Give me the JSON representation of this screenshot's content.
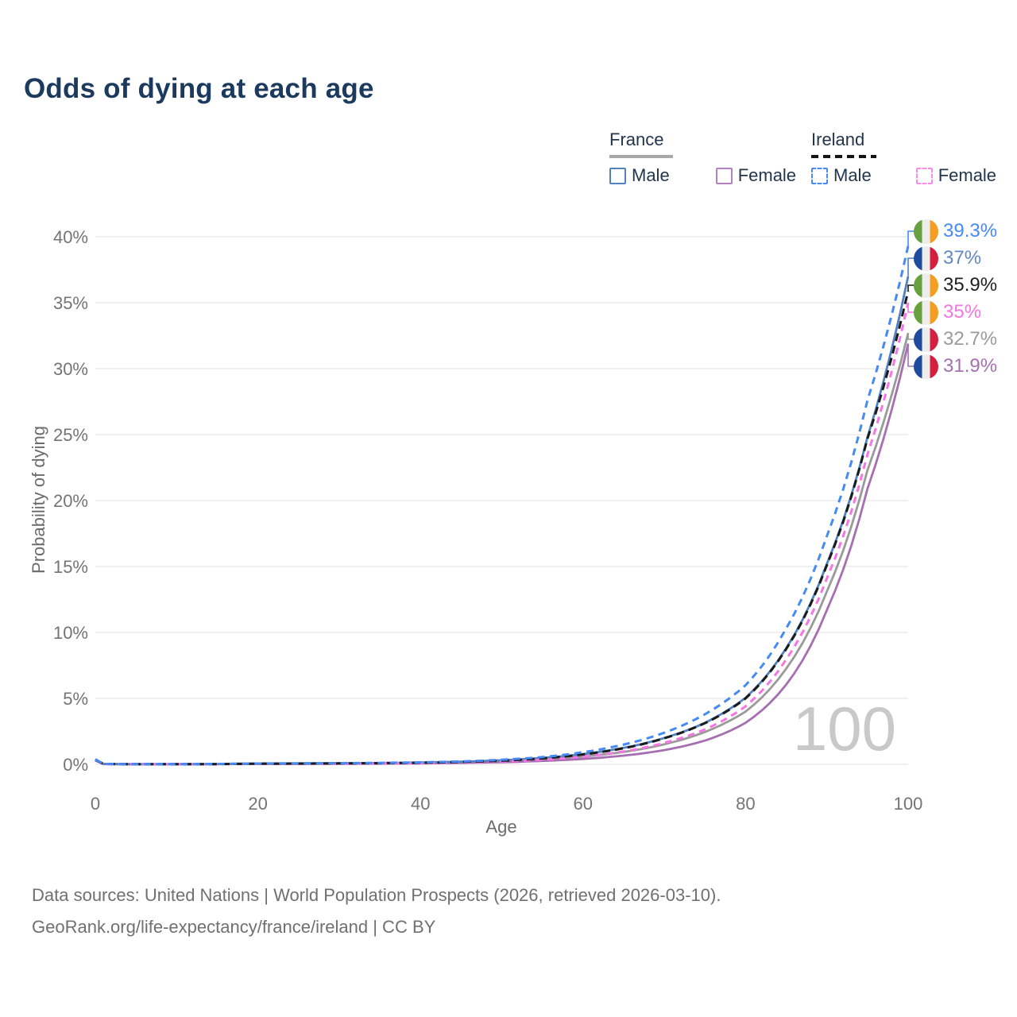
{
  "title": "Odds of dying at each age",
  "legend": {
    "france": {
      "title": "France",
      "male": "Male",
      "female": "Female",
      "male_color": "#5281be",
      "female_color": "#b77fc4",
      "rule_color": "#a8a8a8"
    },
    "ireland": {
      "title": "Ireland",
      "male": "Male",
      "female": "Female",
      "male_color": "#4b8af2",
      "female_color": "#fa8ce9",
      "rule_color": "#141414"
    }
  },
  "colors": {
    "title_text": "#1c3a5e",
    "grid": "#e7e7e7",
    "tick_text": "#747474",
    "axis_title_text": "#6b6b6b",
    "watermark": "#c9c9c9",
    "flags": {
      "ireland": [
        "#68a03f",
        "#ededed",
        "#f59d21"
      ],
      "france": [
        "#1e4b9e",
        "#ededed",
        "#d61f3e"
      ]
    }
  },
  "chart_data": {
    "type": "line",
    "title": "Odds of dying at each age",
    "xlabel": "Age",
    "ylabel": "Probability of dying",
    "xlim": [
      0,
      100
    ],
    "ylim": [
      0,
      40
    ],
    "x_ticks": [
      0,
      20,
      40,
      60,
      80,
      100
    ],
    "y_ticks": [
      0,
      5,
      10,
      15,
      20,
      25,
      30,
      35,
      40
    ],
    "y_tick_labels": [
      "0%",
      "5%",
      "10%",
      "15%",
      "20%",
      "25%",
      "30%",
      "35%",
      "40%"
    ],
    "grid": "horizontal",
    "watermark": "100",
    "ages": [
      0,
      1,
      5,
      10,
      15,
      20,
      25,
      30,
      35,
      40,
      45,
      50,
      55,
      60,
      65,
      70,
      75,
      80,
      85,
      90,
      95,
      100
    ],
    "series": [
      {
        "name": "Ireland Male",
        "flag": "ireland",
        "style": "dashed",
        "color": "#468af4",
        "end_label": "39.3%",
        "label_color": "#468af4",
        "end_value": 39.3,
        "values": [
          0.35,
          0.03,
          0.01,
          0.01,
          0.03,
          0.06,
          0.08,
          0.09,
          0.11,
          0.15,
          0.22,
          0.35,
          0.55,
          0.92,
          1.5,
          2.4,
          3.8,
          6.0,
          10.3,
          17.3,
          27.6,
          39.3
        ]
      },
      {
        "name": "France Male",
        "flag": "france",
        "style": "solid",
        "color": "#5281be",
        "end_label": "37%",
        "label_color": "#6288c4",
        "end_value": 37,
        "values": [
          0.4,
          0.03,
          0.01,
          0.01,
          0.03,
          0.06,
          0.07,
          0.08,
          0.1,
          0.14,
          0.2,
          0.31,
          0.48,
          0.78,
          1.25,
          2.0,
          3.15,
          5.05,
          8.8,
          15.2,
          24.8,
          37.0
        ]
      },
      {
        "name": "Ireland",
        "flag": "ireland",
        "style": "dashed",
        "color": "#1b1b1b",
        "end_label": "35.9%",
        "label_color": "#222222",
        "end_value": 35.9,
        "values": [
          0.33,
          0.03,
          0.01,
          0.01,
          0.02,
          0.05,
          0.06,
          0.07,
          0.09,
          0.12,
          0.18,
          0.28,
          0.45,
          0.75,
          1.22,
          1.98,
          3.12,
          5.0,
          8.75,
          15.1,
          24.7,
          35.9
        ]
      },
      {
        "name": "Ireland Female",
        "flag": "ireland",
        "style": "dashed",
        "color": "#f674e3",
        "end_label": "35%",
        "label_color": "#f674e3",
        "end_value": 35,
        "values": [
          0.3,
          0.02,
          0.01,
          0.01,
          0.02,
          0.03,
          0.04,
          0.05,
          0.07,
          0.09,
          0.14,
          0.22,
          0.35,
          0.58,
          0.98,
          1.63,
          2.65,
          4.4,
          7.95,
          14.1,
          23.5,
          35.0
        ]
      },
      {
        "name": "France",
        "flag": "france",
        "style": "solid",
        "color": "#9a9a9a",
        "end_label": "32.7%",
        "label_color": "#9a9a9a",
        "end_value": 32.7,
        "values": [
          0.37,
          0.03,
          0.01,
          0.01,
          0.02,
          0.04,
          0.05,
          0.06,
          0.08,
          0.1,
          0.15,
          0.23,
          0.37,
          0.59,
          0.94,
          1.52,
          2.45,
          4.0,
          7.25,
          13.1,
          22.3,
          32.7
        ]
      },
      {
        "name": "France Female",
        "flag": "france",
        "style": "solid",
        "color": "#a56fb0",
        "end_label": "31.9%",
        "label_color": "#a56fb0",
        "end_value": 31.9,
        "values": [
          0.34,
          0.02,
          0.01,
          0.01,
          0.02,
          0.03,
          0.03,
          0.04,
          0.05,
          0.07,
          0.11,
          0.16,
          0.26,
          0.41,
          0.66,
          1.08,
          1.8,
          3.15,
          6.05,
          11.7,
          20.9,
          31.9
        ]
      }
    ]
  },
  "footer": {
    "line1": "Data sources: United Nations | World Population Prospects (2026, retrieved 2026-03-10).",
    "line2": "GeoRank.org/life-expectancy/france/ireland | CC BY"
  }
}
